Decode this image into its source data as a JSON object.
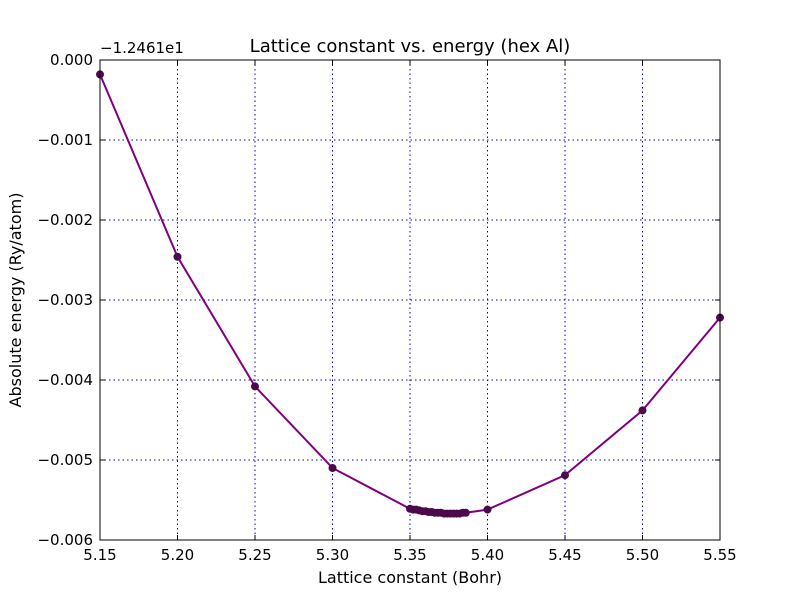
{
  "chart_data": {
    "type": "line",
    "title": "Lattice constant vs. energy (hex Al)",
    "xlabel": "Lattice constant (Bohr)",
    "ylabel": "Absolute energy (Ry/atom)",
    "offset_text": "−1.2461e1",
    "xlim": [
      5.15,
      5.55
    ],
    "ylim": [
      -0.006,
      0.0
    ],
    "xticks": [
      5.15,
      5.2,
      5.25,
      5.3,
      5.35,
      5.4,
      5.45,
      5.5,
      5.55
    ],
    "xtick_labels": [
      "5.15",
      "5.20",
      "5.25",
      "5.30",
      "5.35",
      "5.40",
      "5.45",
      "5.50",
      "5.55"
    ],
    "yticks": [
      0.0,
      -0.001,
      -0.002,
      -0.003,
      -0.004,
      -0.005,
      -0.006
    ],
    "ytick_labels": [
      "0.000",
      "−0.001",
      "−0.002",
      "−0.003",
      "−0.004",
      "−0.005",
      "−0.006"
    ],
    "grid": true,
    "line_color": "#800080",
    "marker_color": "#4b0a4b",
    "grid_color": "#0000bf",
    "series": [
      {
        "x": [
          5.15,
          5.2,
          5.25,
          5.3,
          5.35,
          5.352,
          5.354,
          5.356,
          5.358,
          5.36,
          5.362,
          5.364,
          5.366,
          5.368,
          5.37,
          5.372,
          5.374,
          5.376,
          5.378,
          5.38,
          5.382,
          5.384,
          5.386,
          5.4,
          5.45,
          5.5,
          5.55
        ],
        "values": [
          -0.00018,
          -0.00246,
          -0.00408,
          -0.0051,
          -0.00561,
          -0.00562,
          -0.00562,
          -0.00563,
          -0.00564,
          -0.00564,
          -0.00565,
          -0.00565,
          -0.00566,
          -0.00566,
          -0.00566,
          -0.00567,
          -0.00567,
          -0.00567,
          -0.00567,
          -0.00567,
          -0.00567,
          -0.00566,
          -0.00566,
          -0.00562,
          -0.00519,
          -0.00438,
          -0.00322
        ]
      }
    ]
  }
}
